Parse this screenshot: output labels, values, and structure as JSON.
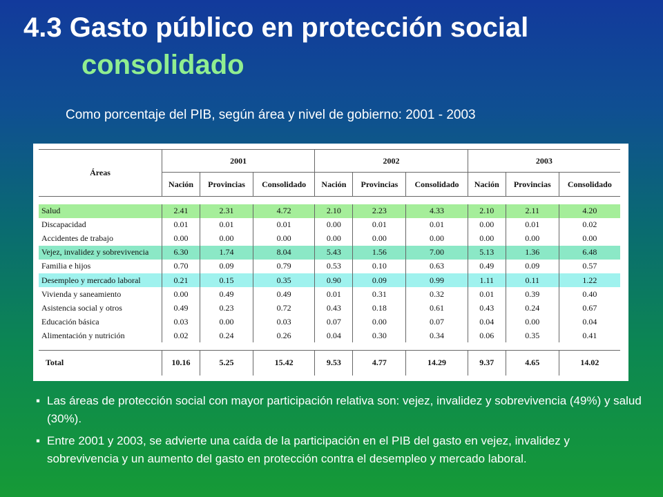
{
  "title": {
    "line1": "4.3 Gasto público en protección social",
    "line2": "consolidado"
  },
  "subtitle": "Como porcentaje del PIB, según área y nivel de gobierno:  2001 - 2003",
  "table": {
    "areas_header": "Áreas",
    "years": [
      "2001",
      "2002",
      "2003"
    ],
    "levels": [
      "Nación",
      "Provincias",
      "Consolidado"
    ],
    "rows": [
      {
        "area": "Salud",
        "values": [
          "2.41",
          "2.31",
          "4.72",
          "2.10",
          "2.23",
          "4.33",
          "2.10",
          "2.11",
          "4.20"
        ],
        "highlight": "#a5ee9a"
      },
      {
        "area": "Discapacidad",
        "values": [
          "0.01",
          "0.01",
          "0.01",
          "0.00",
          "0.01",
          "0.01",
          "0.00",
          "0.01",
          "0.02"
        ]
      },
      {
        "area": "Accidentes de trabajo",
        "values": [
          "0.00",
          "0.00",
          "0.00",
          "0.00",
          "0.00",
          "0.00",
          "0.00",
          "0.00",
          "0.00"
        ]
      },
      {
        "area": "Vejez, invalidez y sobrevivencia",
        "values": [
          "6.30",
          "1.74",
          "8.04",
          "5.43",
          "1.56",
          "7.00",
          "5.13",
          "1.36",
          "6.48"
        ],
        "highlight": "#8be8c6"
      },
      {
        "area": "Familia e hijos",
        "values": [
          "0.70",
          "0.09",
          "0.79",
          "0.53",
          "0.10",
          "0.63",
          "0.49",
          "0.09",
          "0.57"
        ]
      },
      {
        "area": "Desempleo y mercado laboral",
        "values": [
          "0.21",
          "0.15",
          "0.35",
          "0.90",
          "0.09",
          "0.99",
          "1.11",
          "0.11",
          "1.22"
        ],
        "highlight": "#9ff2ee"
      },
      {
        "area": "Vivienda y saneamiento",
        "values": [
          "0.00",
          "0.49",
          "0.49",
          "0.01",
          "0.31",
          "0.32",
          "0.01",
          "0.39",
          "0.40"
        ]
      },
      {
        "area": "Asistencia social y otros",
        "values": [
          "0.49",
          "0.23",
          "0.72",
          "0.43",
          "0.18",
          "0.61",
          "0.43",
          "0.24",
          "0.67"
        ]
      },
      {
        "area": "Educación básica",
        "values": [
          "0.03",
          "0.00",
          "0.03",
          "0.07",
          "0.00",
          "0.07",
          "0.04",
          "0.00",
          "0.04"
        ]
      },
      {
        "area": "Alimentación y nutrición",
        "values": [
          "0.02",
          "0.24",
          "0.26",
          "0.04",
          "0.30",
          "0.34",
          "0.06",
          "0.35",
          "0.41"
        ]
      }
    ],
    "total": {
      "area": "Total",
      "values": [
        "10.16",
        "5.25",
        "15.42",
        "9.53",
        "4.77",
        "14.29",
        "9.37",
        "4.65",
        "14.02"
      ]
    }
  },
  "bullets": [
    "Las áreas de protección social con mayor participación relativa son: vejez, invalidez y sobrevivencia (49%) y salud (30%).",
    "Entre 2001 y 2003, se advierte una caída de la participación en el PIB del gasto en vejez, invalidez y sobrevivencia y un aumento del gasto en protección contra el desempleo y mercado laboral."
  ],
  "bullet_symbol": "▪",
  "colors": {
    "title": "#ffffff",
    "title_accent": "#90ee90",
    "background_top": "#123a9c",
    "background_bottom": "#169a36"
  }
}
